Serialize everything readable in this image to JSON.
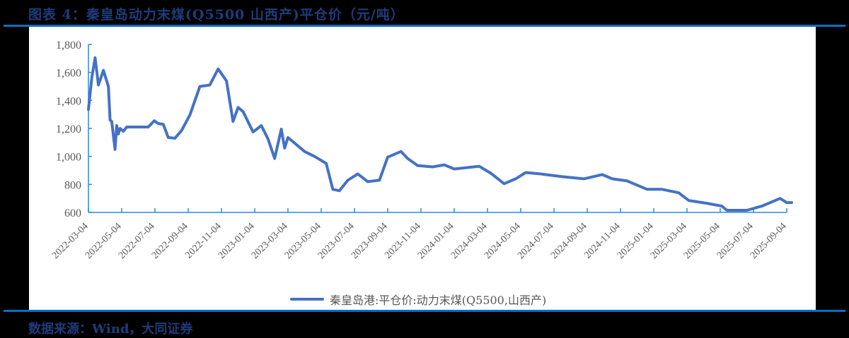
{
  "header": {
    "title": "图表 4：秦皇岛动力末煤(Q5500 山西产)平仓价（元/吨）"
  },
  "footer": {
    "source": "数据来源：Wind，大同证券"
  },
  "legend": {
    "label": "秦皇岛港:平仓价:动力末煤(Q5500,山西产)",
    "color": "#4472c4"
  },
  "colors": {
    "accent_rule": "#0a6fc4",
    "title_text": "#1f3b7a",
    "axis": "#2e8ad8",
    "line": "#4472c4"
  },
  "chart_data": {
    "type": "line",
    "title": "秦皇岛动力末煤(Q5500 山西产)平仓价（元/吨）",
    "xlabel": "",
    "ylabel": "元/吨",
    "ylim": [
      600,
      1800
    ],
    "yticks": [
      600,
      800,
      1000,
      1200,
      1400,
      1600,
      1800
    ],
    "ytick_labels": [
      "600",
      "800",
      "1,000",
      "1,200",
      "1,400",
      "1,600",
      "1,800"
    ],
    "xtick_labels": [
      "2022-03-04",
      "2022-05-04",
      "2022-07-04",
      "2022-09-04",
      "2022-11-04",
      "2023-01-04",
      "2023-03-04",
      "2023-05-04",
      "2023-07-04",
      "2023-09-04",
      "2023-11-04",
      "2024-01-04",
      "2024-03-04",
      "2024-05-04",
      "2024-07-04",
      "2024-09-04",
      "2024-11-04",
      "2025-01-04",
      "2025-03-04",
      "2025-05-04",
      "2025-07-04",
      "2025-09-04"
    ],
    "grid": false,
    "legend_position": "bottom",
    "series": [
      {
        "name": "秦皇岛港:平仓价:动力末煤(Q5500,山西产)",
        "x_index": [
          0,
          0.1,
          0.2,
          0.3,
          0.45,
          0.6,
          0.65,
          0.7,
          0.8,
          0.85,
          0.9,
          0.95,
          1.05,
          1.15,
          1.3,
          1.8,
          1.98,
          2.1,
          2.25,
          2.4,
          2.6,
          2.8,
          3.05,
          3.35,
          3.65,
          3.9,
          4.15,
          4.35,
          4.5,
          4.65,
          4.95,
          5.2,
          5.4,
          5.6,
          5.8,
          5.9,
          6.0,
          6.5,
          6.8,
          7.15,
          7.35,
          7.55,
          7.8,
          8.1,
          8.4,
          8.75,
          9.0,
          9.4,
          9.6,
          9.9,
          10.35,
          10.7,
          11.0,
          11.75,
          12.1,
          12.5,
          12.85,
          13.15,
          13.6,
          14.25,
          14.9,
          15.45,
          15.75,
          16.2,
          16.8,
          17.25,
          17.75,
          18.05,
          18.6,
          19.05,
          19.2,
          19.8,
          20.25,
          20.8,
          21.0,
          21.15
        ],
        "values": [
          1335,
          1560,
          1705,
          1510,
          1615,
          1500,
          1260,
          1250,
          1050,
          1220,
          1160,
          1200,
          1180,
          1210,
          1210,
          1210,
          1255,
          1235,
          1230,
          1135,
          1130,
          1185,
          1295,
          1500,
          1510,
          1625,
          1540,
          1250,
          1350,
          1320,
          1175,
          1220,
          1125,
          985,
          1195,
          1060,
          1135,
          1035,
          1000,
          950,
          765,
          755,
          830,
          875,
          820,
          830,
          995,
          1035,
          985,
          935,
          925,
          940,
          910,
          930,
          880,
          805,
          840,
          885,
          875,
          855,
          840,
          870,
          840,
          825,
          765,
          765,
          740,
          685,
          665,
          645,
          615,
          615,
          645,
          700,
          670,
          670
        ]
      }
    ]
  }
}
